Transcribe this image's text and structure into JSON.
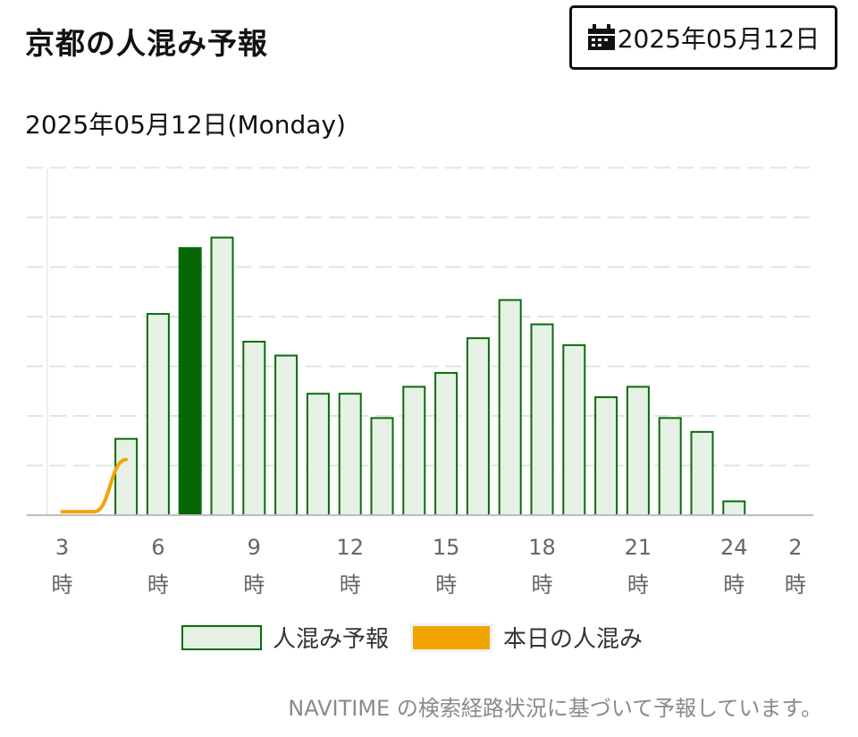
{
  "header": {
    "title": "京都の人混み予報",
    "date_button_label": "2025年05月12日",
    "date_button_icon": "calendar-icon"
  },
  "date_label": "2025年05月12日(Monday)",
  "legend": {
    "forecast": "人混み予報",
    "today": "本日の人混み"
  },
  "footer": {
    "source_note": "NAVITIME の検索経路状況に基づいて予報しています。"
  },
  "colors": {
    "bar_fill": "#e6f1e6",
    "bar_stroke": "#0b6b0b",
    "bar_current_fill": "#066606",
    "today_line": "#f2a500"
  },
  "chart_data": {
    "type": "bar",
    "title": "",
    "xlabel": "",
    "ylabel": "",
    "ylim": [
      0,
      100
    ],
    "grid": true,
    "y_axis_labels_shown": false,
    "legend_position": "bottom",
    "tick_labels": [
      {
        "x": 3,
        "hour": "3",
        "unit": "時"
      },
      {
        "x": 6,
        "hour": "6",
        "unit": "時"
      },
      {
        "x": 9,
        "hour": "9",
        "unit": "時"
      },
      {
        "x": 12,
        "hour": "12",
        "unit": "時"
      },
      {
        "x": 15,
        "hour": "15",
        "unit": "時"
      },
      {
        "x": 18,
        "hour": "18",
        "unit": "時"
      },
      {
        "x": 21,
        "hour": "21",
        "unit": "時"
      },
      {
        "x": 24,
        "hour": "24",
        "unit": "時"
      },
      {
        "x": 26,
        "hour": "2",
        "unit": "時"
      }
    ],
    "current_hour": 7,
    "series": [
      {
        "name": "人混み予報",
        "kind": "bar",
        "x": [
          5,
          6,
          7,
          8,
          9,
          10,
          11,
          12,
          13,
          14,
          15,
          16,
          17,
          18,
          19,
          20,
          21,
          22,
          23,
          24
        ],
        "values": [
          22,
          58,
          77,
          80,
          50,
          46,
          35,
          35,
          28,
          37,
          41,
          51,
          62,
          55,
          49,
          34,
          37,
          28,
          24,
          4
        ]
      },
      {
        "name": "本日の人混み",
        "kind": "line",
        "x": [
          3,
          4,
          5
        ],
        "values": [
          1,
          1,
          16
        ]
      }
    ]
  }
}
